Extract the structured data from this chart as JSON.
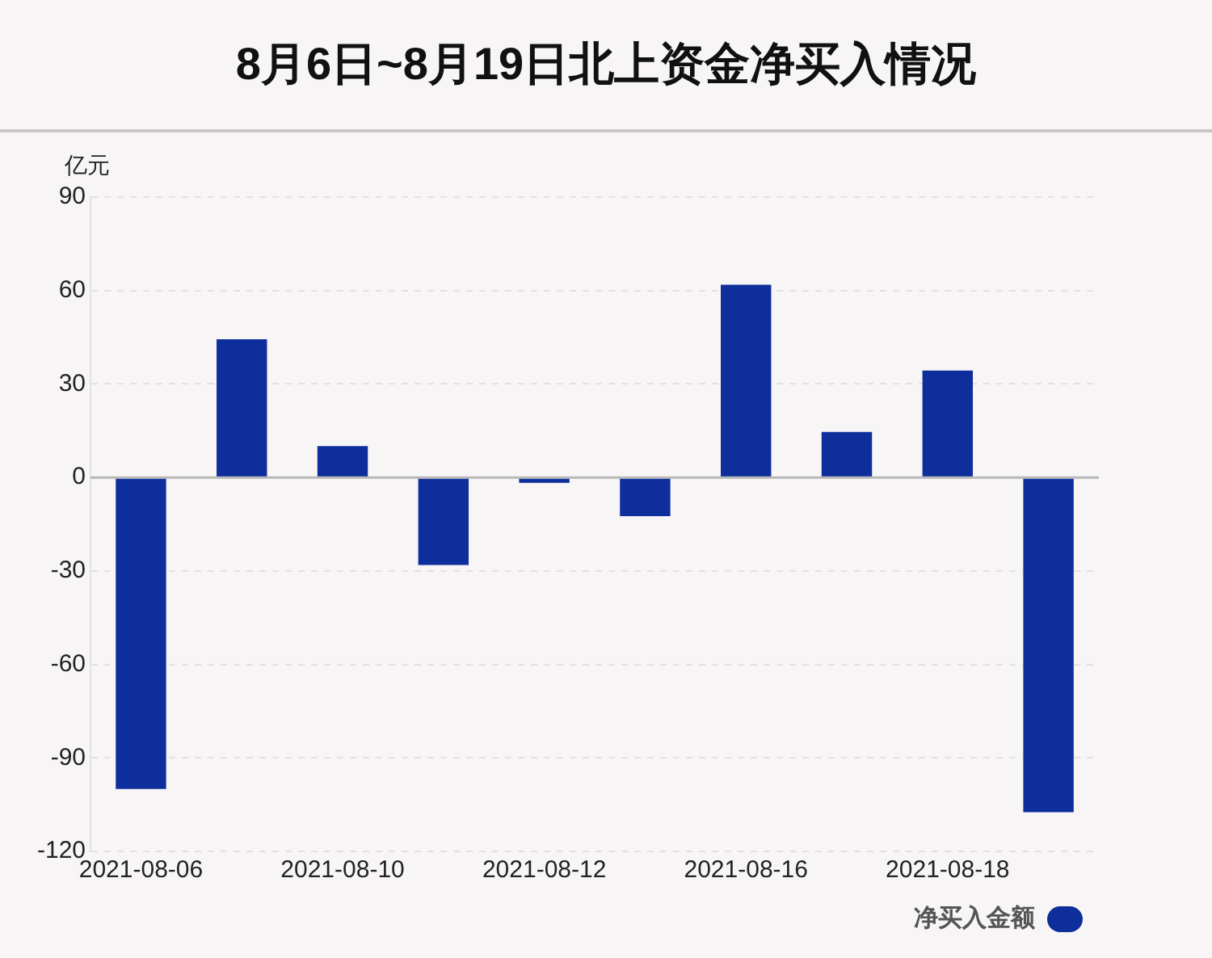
{
  "chart_data": {
    "type": "bar",
    "title": "8月6日~8月19日北上资金净买入情况",
    "ylabel": "亿元",
    "categories": [
      "2021-08-06",
      null,
      "2021-08-10",
      null,
      "2021-08-12",
      null,
      "2021-08-16",
      null,
      "2021-08-18",
      null
    ],
    "series": [
      {
        "name": "净买入金额",
        "color": "#0e2f9b",
        "values": [
          -100,
          44.4,
          10.1,
          -28.1,
          -1.7,
          -12.4,
          61.9,
          14.6,
          34.3,
          -107.4
        ]
      }
    ],
    "ylim": [
      -120,
      90
    ],
    "yticks": [
      -120,
      -90,
      -60,
      -30,
      0,
      30,
      60,
      90
    ],
    "grid": "y",
    "legend": "bottom right",
    "ref_lines": [
      {
        "axis": "y",
        "value": 0,
        "color": "#b8b8b8"
      }
    ]
  }
}
